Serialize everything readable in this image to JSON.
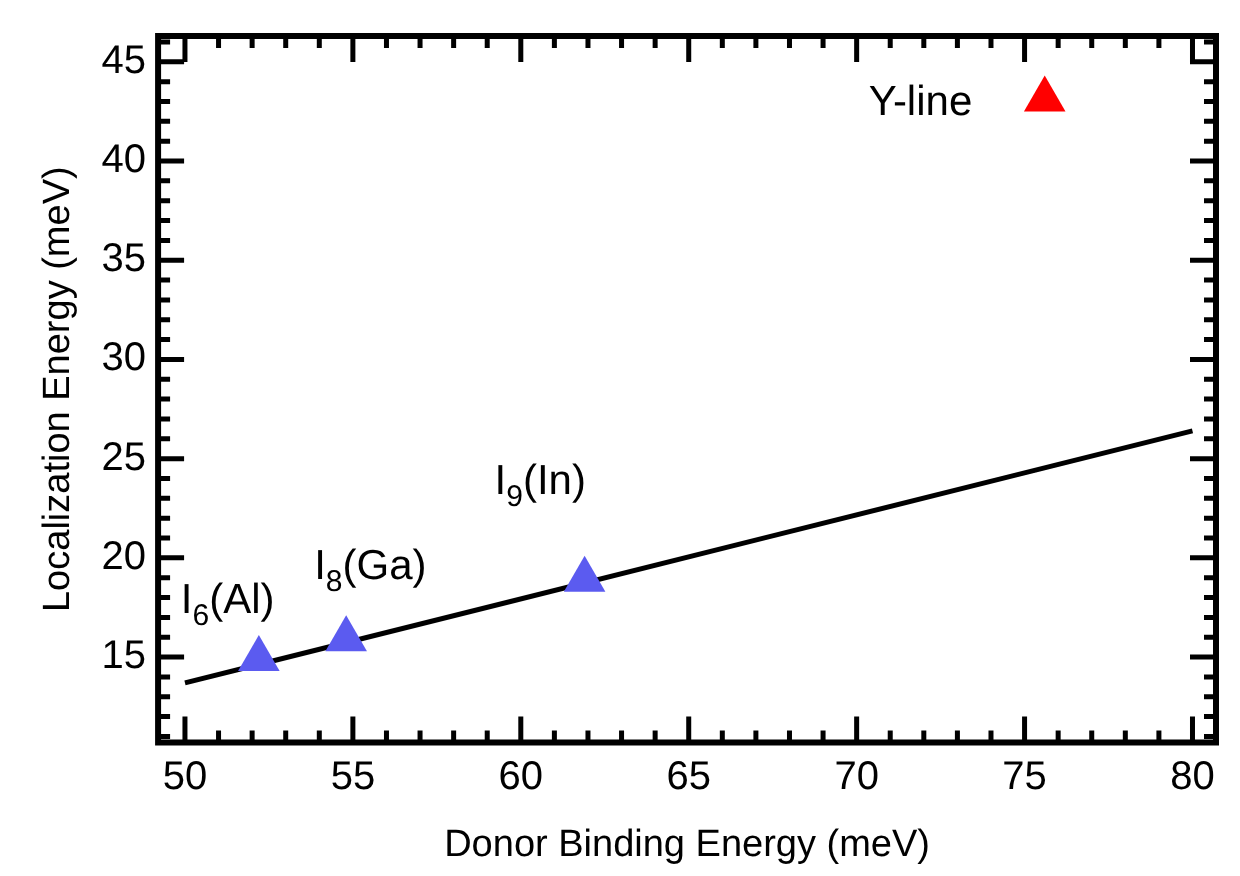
{
  "chart_data": {
    "type": "scatter",
    "xlabel": "Donor Binding Energy (meV)",
    "ylabel": "Localization Energy (meV)",
    "xlim": [
      49.2,
      80.7
    ],
    "ylim": [
      10.7,
      46.3
    ],
    "xticks": [
      50,
      {
        "value": 51,
        "label": null
      },
      {
        "value": 52,
        "label": null
      },
      {
        "value": 53,
        "label": null
      },
      {
        "value": 54,
        "label": null
      },
      55,
      {
        "value": 56,
        "label": null
      },
      {
        "value": 57,
        "label": null
      },
      {
        "value": 58,
        "label": null
      },
      {
        "value": 59,
        "label": null
      },
      60,
      {
        "value": 61,
        "label": null
      },
      {
        "value": 62,
        "label": null
      },
      {
        "value": 63,
        "label": null
      },
      {
        "value": 64,
        "label": null
      },
      65,
      {
        "value": 66,
        "label": null
      },
      {
        "value": 67,
        "label": null
      },
      {
        "value": 68,
        "label": null
      },
      {
        "value": 69,
        "label": null
      },
      70,
      {
        "value": 71,
        "label": null
      },
      {
        "value": 72,
        "label": null
      },
      {
        "value": 73,
        "label": null
      },
      {
        "value": 74,
        "label": null
      },
      75,
      {
        "value": 76,
        "label": null
      },
      {
        "value": 77,
        "label": null
      },
      {
        "value": 78,
        "label": null
      },
      {
        "value": 79,
        "label": null
      },
      80
    ],
    "yticks": [
      {
        "value": 11,
        "label": null
      },
      {
        "value": 12,
        "label": null
      },
      {
        "value": 13,
        "label": null
      },
      {
        "value": 14,
        "label": null
      },
      15,
      {
        "value": 16,
        "label": null
      },
      {
        "value": 17,
        "label": null
      },
      {
        "value": 18,
        "label": null
      },
      {
        "value": 19,
        "label": null
      },
      20,
      {
        "value": 21,
        "label": null
      },
      {
        "value": 22,
        "label": null
      },
      {
        "value": 23,
        "label": null
      },
      {
        "value": 24,
        "label": null
      },
      25,
      {
        "value": 26,
        "label": null
      },
      {
        "value": 27,
        "label": null
      },
      {
        "value": 28,
        "label": null
      },
      {
        "value": 29,
        "label": null
      },
      30,
      {
        "value": 31,
        "label": null
      },
      {
        "value": 32,
        "label": null
      },
      {
        "value": 33,
        "label": null
      },
      {
        "value": 34,
        "label": null
      },
      35,
      {
        "value": 36,
        "label": null
      },
      {
        "value": 37,
        "label": null
      },
      {
        "value": 38,
        "label": null
      },
      {
        "value": 39,
        "label": null
      },
      40,
      {
        "value": 41,
        "label": null
      },
      {
        "value": 42,
        "label": null
      },
      {
        "value": 43,
        "label": null
      },
      {
        "value": 44,
        "label": null
      },
      45,
      {
        "value": 46,
        "label": null
      }
    ],
    "grid": false,
    "legend": false,
    "marker": "triangle",
    "series": [
      {
        "color": "#5b5bf0",
        "x": [
          52.2,
          54.8,
          61.9
        ],
        "values": [
          14.9,
          15.9,
          18.9
        ]
      },
      {
        "color": "#ff0000",
        "x": [
          75.6
        ],
        "values": [
          43.1
        ]
      },
      {
        "type": "line",
        "color": "#000000",
        "x": [
          50,
          80
        ],
        "values": [
          13.7,
          26.4
        ],
        "marker": "none",
        "line_style": "solid"
      }
    ],
    "annotations": [
      {
        "text": "I$_{6}$(Al)",
        "x": 52.2,
        "y": 14.9
      },
      {
        "text": "I$_{8}$(Ga)",
        "x": 54.8,
        "y": 15.9
      },
      {
        "text": "I$_{9}$(In)",
        "x": 61.9,
        "y": 18.9
      },
      {
        "text": "Y-line",
        "x": 75.6,
        "y": 43.1
      }
    ]
  }
}
